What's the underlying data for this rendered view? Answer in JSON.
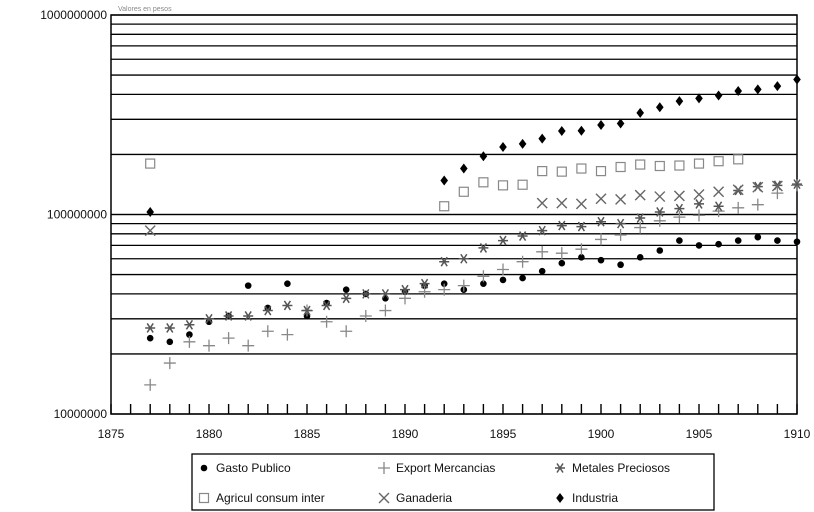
{
  "chart_data": {
    "type": "scatter",
    "title": "",
    "xlabel": "",
    "ylabel": "",
    "caption": "Valores en pesos",
    "xlim": [
      1875,
      1910
    ],
    "ylim": [
      10000000,
      1000000000
    ],
    "yscale": "log",
    "x_ticks": [
      {
        "value": 1875,
        "label": "1875"
      },
      {
        "value": 1880,
        "label": "1880"
      },
      {
        "value": 1885,
        "label": "1885"
      },
      {
        "value": 1890,
        "label": "1890"
      },
      {
        "value": 1895,
        "label": "1895"
      },
      {
        "value": 1900,
        "label": "1900"
      },
      {
        "value": 1905,
        "label": "1905"
      },
      {
        "value": 1910,
        "label": "1910"
      }
    ],
    "y_ticks": [
      {
        "value": 10000000,
        "label": "10000000"
      },
      {
        "value": 100000000,
        "label": "100000000"
      },
      {
        "value": 1000000000,
        "label": "1000000000"
      }
    ],
    "grid": "horizontal",
    "legend_position": "bottom",
    "series": [
      {
        "name": "Gasto Publico",
        "marker": "dot",
        "points": [
          [
            1877,
            24000000
          ],
          [
            1878,
            23000000
          ],
          [
            1879,
            25000000
          ],
          [
            1880,
            29000000
          ],
          [
            1881,
            31000000
          ],
          [
            1882,
            44000000
          ],
          [
            1883,
            34000000
          ],
          [
            1884,
            45000000
          ],
          [
            1885,
            31000000
          ],
          [
            1886,
            36000000
          ],
          [
            1887,
            42000000
          ],
          [
            1888,
            40000000
          ],
          [
            1889,
            38000000
          ],
          [
            1890,
            41000000
          ],
          [
            1891,
            44000000
          ],
          [
            1892,
            45000000
          ],
          [
            1893,
            42000000
          ],
          [
            1894,
            45000000
          ],
          [
            1895,
            47000000
          ],
          [
            1896,
            48000000
          ],
          [
            1897,
            52000000
          ],
          [
            1898,
            57000000
          ],
          [
            1899,
            61000000
          ],
          [
            1900,
            59000000
          ],
          [
            1901,
            56000000
          ],
          [
            1902,
            61000000
          ],
          [
            1903,
            66000000
          ],
          [
            1904,
            74000000
          ],
          [
            1905,
            70000000
          ],
          [
            1906,
            71000000
          ],
          [
            1907,
            74000000
          ],
          [
            1908,
            77000000
          ],
          [
            1909,
            74000000
          ],
          [
            1910,
            73000000
          ]
        ]
      },
      {
        "name": "Export Mercancias",
        "marker": "plus",
        "points": [
          [
            1877,
            14000000
          ],
          [
            1878,
            18000000
          ],
          [
            1879,
            23000000
          ],
          [
            1880,
            22000000
          ],
          [
            1881,
            24000000
          ],
          [
            1882,
            22000000
          ],
          [
            1883,
            26000000
          ],
          [
            1884,
            25000000
          ],
          [
            1885,
            33000000
          ],
          [
            1886,
            29000000
          ],
          [
            1887,
            26000000
          ],
          [
            1888,
            31000000
          ],
          [
            1889,
            33000000
          ],
          [
            1890,
            38000000
          ],
          [
            1891,
            41000000
          ],
          [
            1892,
            42000000
          ],
          [
            1893,
            44000000
          ],
          [
            1894,
            49000000
          ],
          [
            1895,
            53000000
          ],
          [
            1896,
            58000000
          ],
          [
            1897,
            65000000
          ],
          [
            1898,
            64000000
          ],
          [
            1899,
            67000000
          ],
          [
            1900,
            75000000
          ],
          [
            1901,
            79000000
          ],
          [
            1902,
            86000000
          ],
          [
            1903,
            93000000
          ],
          [
            1904,
            97000000
          ],
          [
            1905,
            99000000
          ],
          [
            1906,
            104000000
          ],
          [
            1907,
            108000000
          ],
          [
            1908,
            112000000
          ],
          [
            1909,
            128000000
          ],
          [
            1910,
            140000000
          ]
        ]
      },
      {
        "name": "Metales Preciosos",
        "marker": "star",
        "points": [
          [
            1877,
            27000000
          ],
          [
            1878,
            27000000
          ],
          [
            1879,
            28000000
          ],
          [
            1880,
            30000000
          ],
          [
            1881,
            31000000
          ],
          [
            1882,
            31000000
          ],
          [
            1883,
            33000000
          ],
          [
            1884,
            35000000
          ],
          [
            1885,
            33000000
          ],
          [
            1886,
            35000000
          ],
          [
            1887,
            38000000
          ],
          [
            1888,
            40000000
          ],
          [
            1889,
            40000000
          ],
          [
            1890,
            42000000
          ],
          [
            1891,
            45000000
          ],
          [
            1892,
            58000000
          ],
          [
            1893,
            60000000
          ],
          [
            1894,
            68000000
          ],
          [
            1895,
            74000000
          ],
          [
            1896,
            78000000
          ],
          [
            1897,
            83000000
          ],
          [
            1898,
            88000000
          ],
          [
            1899,
            87000000
          ],
          [
            1900,
            92000000
          ],
          [
            1901,
            90000000
          ],
          [
            1902,
            96000000
          ],
          [
            1903,
            103000000
          ],
          [
            1904,
            107000000
          ],
          [
            1905,
            113000000
          ],
          [
            1906,
            110000000
          ],
          [
            1907,
            132000000
          ],
          [
            1908,
            138000000
          ],
          [
            1909,
            140000000
          ],
          [
            1910,
            142000000
          ]
        ]
      },
      {
        "name": "Agricul consum inter",
        "marker": "square",
        "points": [
          [
            1877,
            180000000
          ],
          [
            1892,
            110000000
          ],
          [
            1893,
            130000000
          ],
          [
            1894,
            145000000
          ],
          [
            1895,
            140000000
          ],
          [
            1896,
            141000000
          ],
          [
            1897,
            165000000
          ],
          [
            1898,
            164000000
          ],
          [
            1899,
            170000000
          ],
          [
            1900,
            165000000
          ],
          [
            1901,
            173000000
          ],
          [
            1902,
            178000000
          ],
          [
            1903,
            175000000
          ],
          [
            1904,
            176000000
          ],
          [
            1905,
            180000000
          ],
          [
            1906,
            185000000
          ],
          [
            1907,
            189000000
          ]
        ]
      },
      {
        "name": "Ganaderia",
        "marker": "x",
        "points": [
          [
            1877,
            83000000
          ],
          [
            1897,
            114000000
          ],
          [
            1898,
            114000000
          ],
          [
            1899,
            113000000
          ],
          [
            1900,
            120000000
          ],
          [
            1901,
            119000000
          ],
          [
            1902,
            125000000
          ],
          [
            1903,
            123000000
          ],
          [
            1904,
            124000000
          ],
          [
            1905,
            126000000
          ],
          [
            1906,
            130000000
          ],
          [
            1907,
            133000000
          ],
          [
            1908,
            137000000
          ],
          [
            1909,
            139000000
          ]
        ]
      },
      {
        "name": "Industria",
        "marker": "diamond",
        "points": [
          [
            1877,
            103000000
          ],
          [
            1892,
            148000000
          ],
          [
            1893,
            170000000
          ],
          [
            1894,
            196000000
          ],
          [
            1895,
            218000000
          ],
          [
            1896,
            226000000
          ],
          [
            1897,
            240000000
          ],
          [
            1898,
            262000000
          ],
          [
            1899,
            263000000
          ],
          [
            1900,
            281000000
          ],
          [
            1901,
            286000000
          ],
          [
            1902,
            323000000
          ],
          [
            1903,
            345000000
          ],
          [
            1904,
            370000000
          ],
          [
            1905,
            382000000
          ],
          [
            1906,
            395000000
          ],
          [
            1907,
            416000000
          ],
          [
            1908,
            424000000
          ],
          [
            1909,
            440000000
          ],
          [
            1910,
            475000000
          ]
        ]
      }
    ]
  }
}
